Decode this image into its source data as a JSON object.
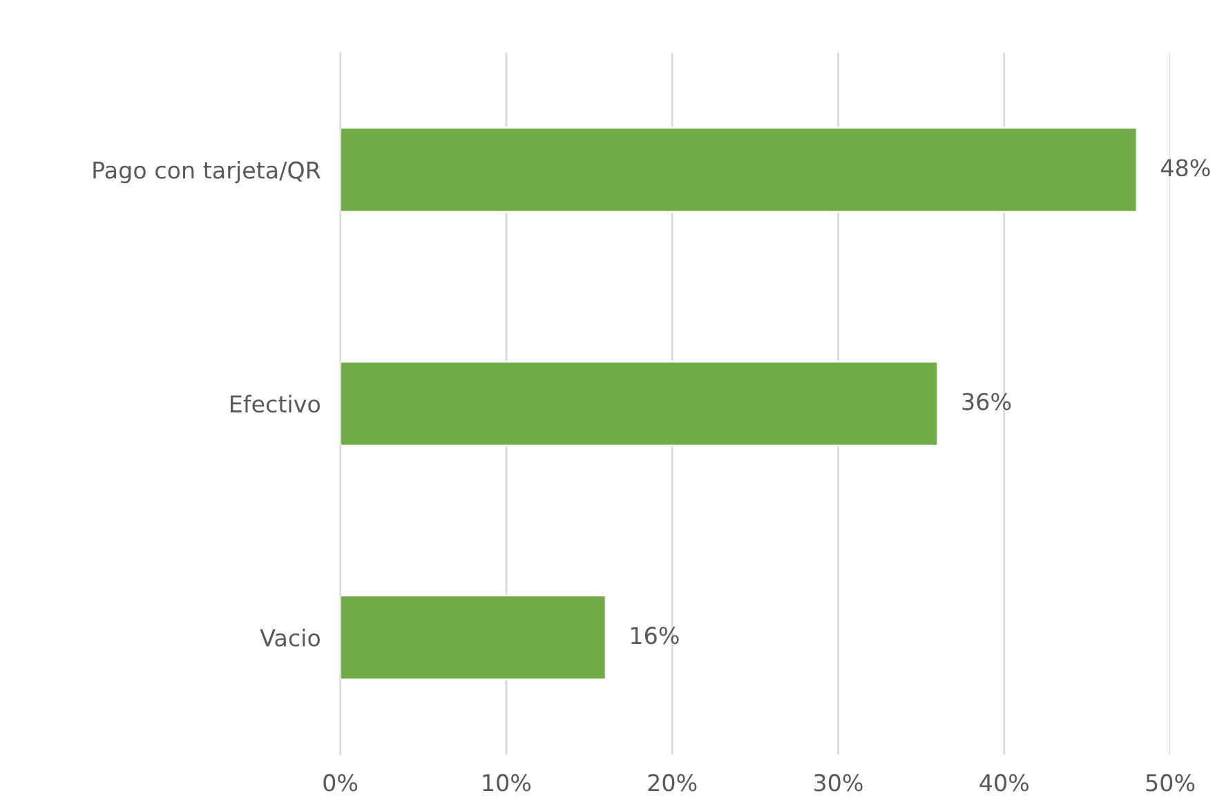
{
  "chart_data": {
    "type": "bar",
    "orientation": "horizontal",
    "categories": [
      "Pago con tarjeta/QR",
      "Efectivo",
      "Vacio"
    ],
    "values": [
      48,
      36,
      16
    ],
    "value_labels": [
      "48%",
      "36%",
      "16%"
    ],
    "color": "#70ad47",
    "xlim": [
      0,
      50
    ],
    "xticks": [
      {
        "value": 0,
        "label": "0%"
      },
      {
        "value": 10,
        "label": "10%"
      },
      {
        "value": 20,
        "label": "20%"
      },
      {
        "value": 30,
        "label": "30%"
      },
      {
        "value": 40,
        "label": "40%"
      },
      {
        "value": 50,
        "label": "50%"
      }
    ],
    "grid": "x",
    "legend": false
  }
}
